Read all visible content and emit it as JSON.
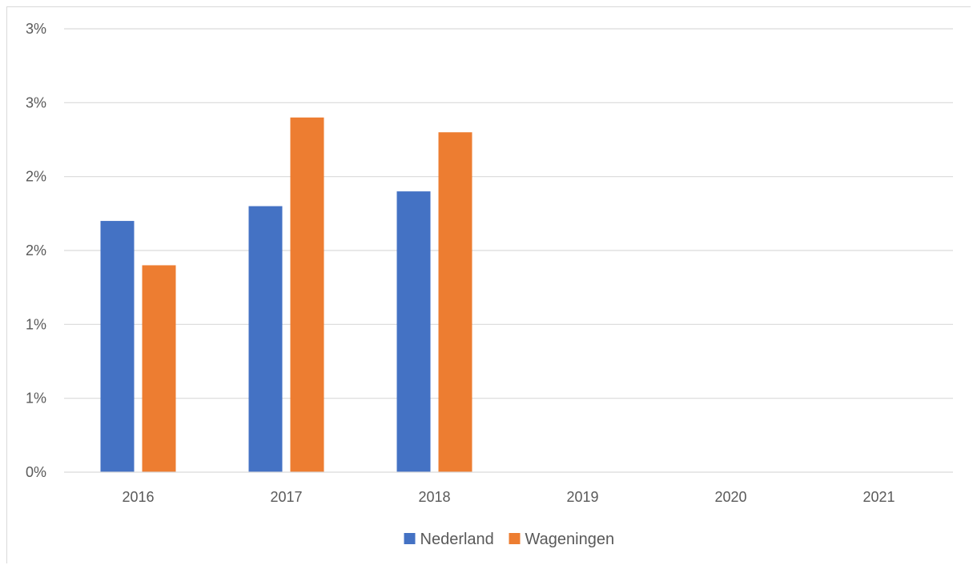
{
  "chart_data": {
    "type": "bar",
    "categories": [
      "2016",
      "2017",
      "2018",
      "2019",
      "2020",
      "2021"
    ],
    "series": [
      {
        "name": "Nederland",
        "color": "#4472c4",
        "values": [
          1.7,
          1.8,
          1.9,
          null,
          null,
          null
        ]
      },
      {
        "name": "Wageningen",
        "color": "#ed7d31",
        "values": [
          1.4,
          2.4,
          2.3,
          null,
          null,
          null
        ]
      }
    ],
    "ylim": [
      0,
      3
    ],
    "y_ticks": [
      0,
      0.5,
      1,
      1.5,
      2,
      2.5,
      3
    ],
    "y_tick_labels": [
      "0%",
      "1%",
      "1%",
      "2%",
      "2%",
      "3%",
      "3%"
    ],
    "grid": true,
    "legend_position": "bottom",
    "title": "",
    "xlabel": "",
    "ylabel": ""
  }
}
